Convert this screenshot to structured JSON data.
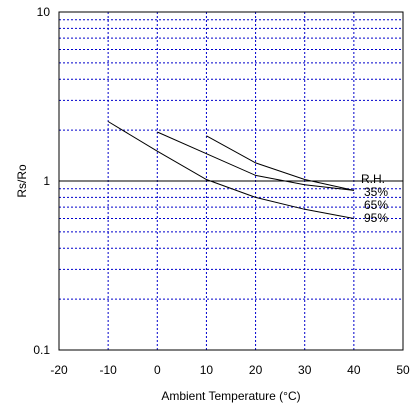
{
  "chart_data": {
    "type": "line",
    "title": "",
    "xlabel": "Ambient Temperature (°C)",
    "ylabel": "Rs/Ro",
    "xlim": [
      -20,
      50
    ],
    "ylim": [
      0.1,
      10
    ],
    "yscale": "log",
    "grid": true,
    "grid_style": "dashed blue",
    "x_ticks": [
      "-20",
      "-10",
      "0",
      "10",
      "20",
      "30",
      "40",
      "50"
    ],
    "y_ticks": [
      "0.1",
      "1",
      "10"
    ],
    "reference_line": {
      "y": 1,
      "label": "R.H."
    },
    "series": [
      {
        "name": "35%",
        "x": [
          0,
          10,
          20,
          30,
          40
        ],
        "y": [
          1.95,
          1.45,
          1.08,
          0.95,
          0.88
        ]
      },
      {
        "name": "65%",
        "x": [
          10,
          20,
          30,
          40
        ],
        "y": [
          1.85,
          1.28,
          1.02,
          0.88
        ]
      },
      {
        "name": "95%",
        "x": [
          -10,
          0,
          10,
          20,
          30,
          40
        ],
        "y": [
          2.25,
          1.5,
          1.02,
          0.8,
          0.68,
          0.6
        ]
      }
    ],
    "line_color": "#000000",
    "grid_color": "#0000cc"
  }
}
